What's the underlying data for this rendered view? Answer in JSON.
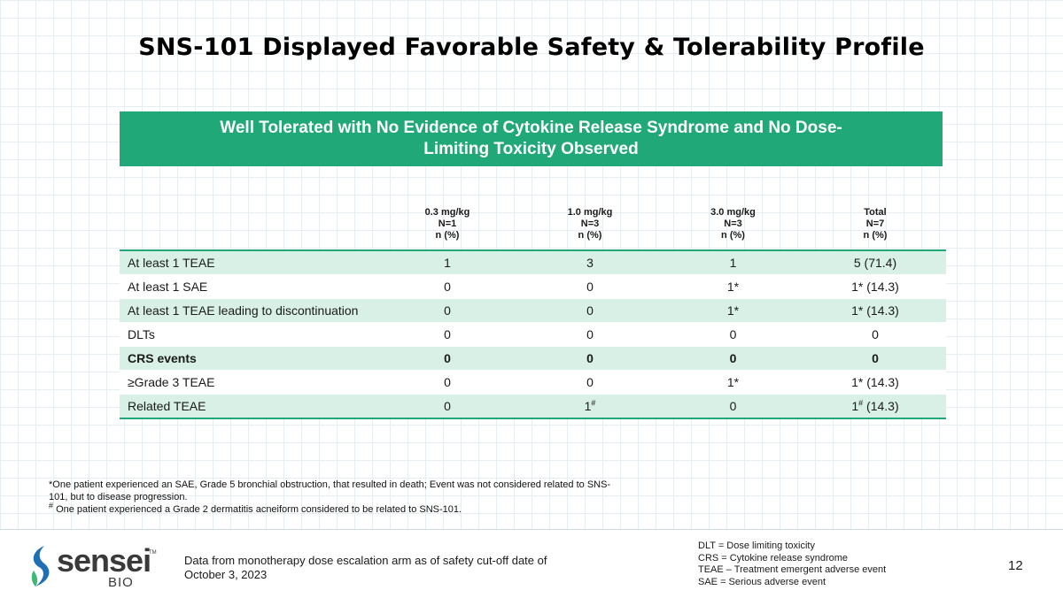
{
  "title": "SNS-101 Displayed Favorable Safety & Tolerability Profile",
  "banner": "Well Tolerated with No Evidence of Cytokine Release Syndrome and No Dose-Limiting Toxicity Observed",
  "table": {
    "columns": [
      {
        "dose": "0.3 mg/kg",
        "n": "N=1",
        "unit": "n (%)"
      },
      {
        "dose": "1.0 mg/kg",
        "n": "N=3",
        "unit": "n (%)"
      },
      {
        "dose": "3.0 mg/kg",
        "n": "N=3",
        "unit": "n (%)"
      },
      {
        "dose": "Total",
        "n": "N=7",
        "unit": "n (%)"
      }
    ],
    "rows": [
      {
        "label": "At least 1 TEAE",
        "values": [
          "1",
          "3",
          "1",
          "5 (71.4)"
        ]
      },
      {
        "label": "At least 1 SAE",
        "values": [
          "0",
          "0",
          "1*",
          "1* (14.3)"
        ]
      },
      {
        "label": "At least 1 TEAE leading to discontinuation",
        "values": [
          "0",
          "0",
          "1*",
          "1* (14.3)"
        ]
      },
      {
        "label": "DLTs",
        "values": [
          "0",
          "0",
          "0",
          "0"
        ]
      },
      {
        "label": "CRS events",
        "values": [
          "0",
          "0",
          "0",
          "0"
        ],
        "bold": true
      },
      {
        "label": "≥Grade 3 TEAE",
        "values": [
          "0",
          "0",
          "1*",
          "1* (14.3)"
        ]
      },
      {
        "label": "Related TEAE",
        "values": [
          "0",
          "1",
          "0",
          "1"
        ],
        "sups": [
          "",
          "#",
          "",
          "#"
        ],
        "suffix": [
          "",
          "",
          "",
          " (14.3)"
        ]
      }
    ]
  },
  "footnotes": {
    "line1": "*One patient experienced an SAE, Grade 5 bronchial obstruction, that resulted in death; Event was not considered related to SNS-101, but to disease progression.",
    "line2_mark": "#",
    "line2": " One patient experienced a Grade 2 dermatitis acneiform considered to be related to SNS-101."
  },
  "footer": {
    "logo_word": "sensei",
    "logo_sub": "BIO",
    "logo_tm": "TM",
    "source": "Data from monotherapy dose escalation arm as of safety cut-off date of October 3, 2023",
    "abbreviations": [
      "DLT = Dose limiting toxicity",
      "CRS = Cytokine release syndrome",
      "TEAE – Treatment emergent adverse event",
      "SAE = Serious adverse event"
    ],
    "page_number": "12"
  },
  "colors": {
    "accent": "#21a878",
    "row_tint": "#d8f0e5",
    "logo_blue": "#1e6fb3",
    "logo_green": "#3cb878"
  }
}
